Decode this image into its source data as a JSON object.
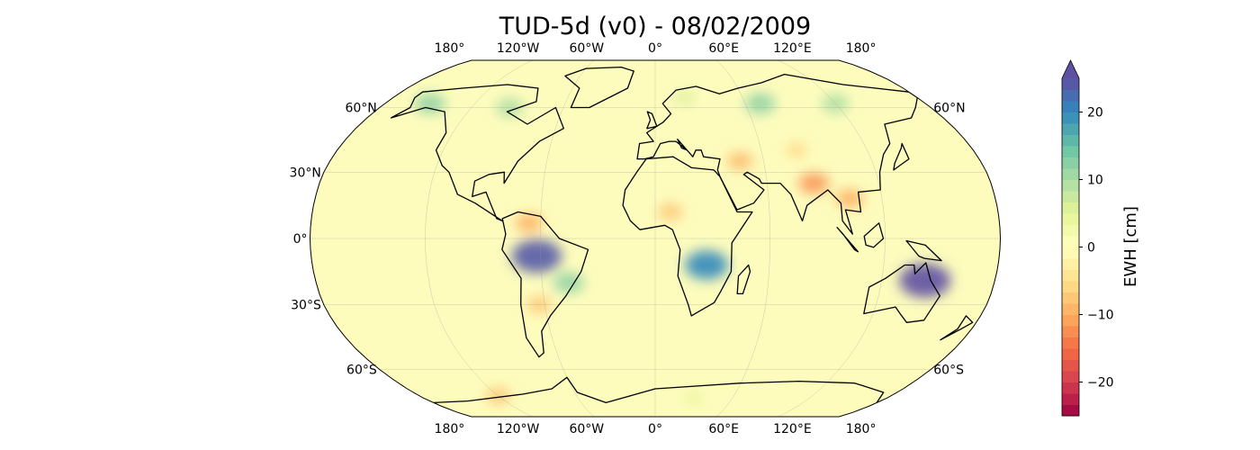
{
  "title": "TUD-5d (v0) - 08/02/2009",
  "map": {
    "projection": "Robinson",
    "ocean_color": "#fdfcbd",
    "coastline_color": "#000000",
    "gridlines": true,
    "lon_labels": [
      {
        "lon": -180,
        "text": "180°"
      },
      {
        "lon": -120,
        "text": "120°W"
      },
      {
        "lon": -60,
        "text": "60°W"
      },
      {
        "lon": 0,
        "text": "0°"
      },
      {
        "lon": 60,
        "text": "60°E"
      },
      {
        "lon": 120,
        "text": "120°E"
      },
      {
        "lon": 180,
        "text": "180°"
      }
    ],
    "lat_labels_left": [
      {
        "lat": 60,
        "text": "60°N"
      },
      {
        "lat": 30,
        "text": "30°N"
      },
      {
        "lat": 0,
        "text": "0°"
      },
      {
        "lat": -30,
        "text": "30°S"
      },
      {
        "lat": -60,
        "text": "60°S"
      }
    ],
    "lat_labels_right": [
      {
        "lat": 60,
        "text": "60°N"
      },
      {
        "lat": -60,
        "text": "60°S"
      }
    ],
    "anomalies": [
      {
        "region": "Amazon",
        "lon": -62,
        "lat": -8,
        "value": 24
      },
      {
        "region": "SE Brazil",
        "lon": -46,
        "lat": -20,
        "value": 12
      },
      {
        "region": "Orinoco",
        "lon": -66,
        "lat": 7,
        "value": -10
      },
      {
        "region": "Argentina",
        "lon": -63,
        "lat": -30,
        "value": -8
      },
      {
        "region": "Congo/Zambezi",
        "lon": 27,
        "lat": -12,
        "value": 20
      },
      {
        "region": "Sahel",
        "lon": 8,
        "lat": 12,
        "value": -8
      },
      {
        "region": "N Australia",
        "lon": 143,
        "lat": -19,
        "value": 25
      },
      {
        "region": "India",
        "lon": 85,
        "lat": 25,
        "value": -12
      },
      {
        "region": "Indochina",
        "lon": 103,
        "lat": 18,
        "value": -10
      },
      {
        "region": "Iran",
        "lon": 47,
        "lat": 35,
        "value": -9
      },
      {
        "region": "Central Asia",
        "lon": 80,
        "lat": 40,
        "value": -6
      },
      {
        "region": "W Siberia",
        "lon": 70,
        "lat": 62,
        "value": 12
      },
      {
        "region": "E Siberia",
        "lon": 120,
        "lat": 62,
        "value": 10
      },
      {
        "region": "Hudson Bay",
        "lon": -95,
        "lat": 60,
        "value": 10
      },
      {
        "region": "Alaska",
        "lon": -150,
        "lat": 62,
        "value": 12
      },
      {
        "region": "Scandinavia",
        "lon": 20,
        "lat": 65,
        "value": 6
      },
      {
        "region": "Antarctic coast",
        "lon": -120,
        "lat": -74,
        "value": -8
      },
      {
        "region": "Antarctic interior",
        "lon": 30,
        "lat": -75,
        "value": 5
      }
    ]
  },
  "colorbar": {
    "label": "EWH [cm]",
    "colormap": "Spectral",
    "min": -25,
    "max": 25,
    "extend": "max",
    "levels": 30,
    "ticks": [
      {
        "value": 20,
        "text": "20"
      },
      {
        "value": 10,
        "text": "10"
      },
      {
        "value": 0,
        "text": "0"
      },
      {
        "value": -10,
        "text": "−10"
      },
      {
        "value": -20,
        "text": "−20"
      }
    ]
  }
}
